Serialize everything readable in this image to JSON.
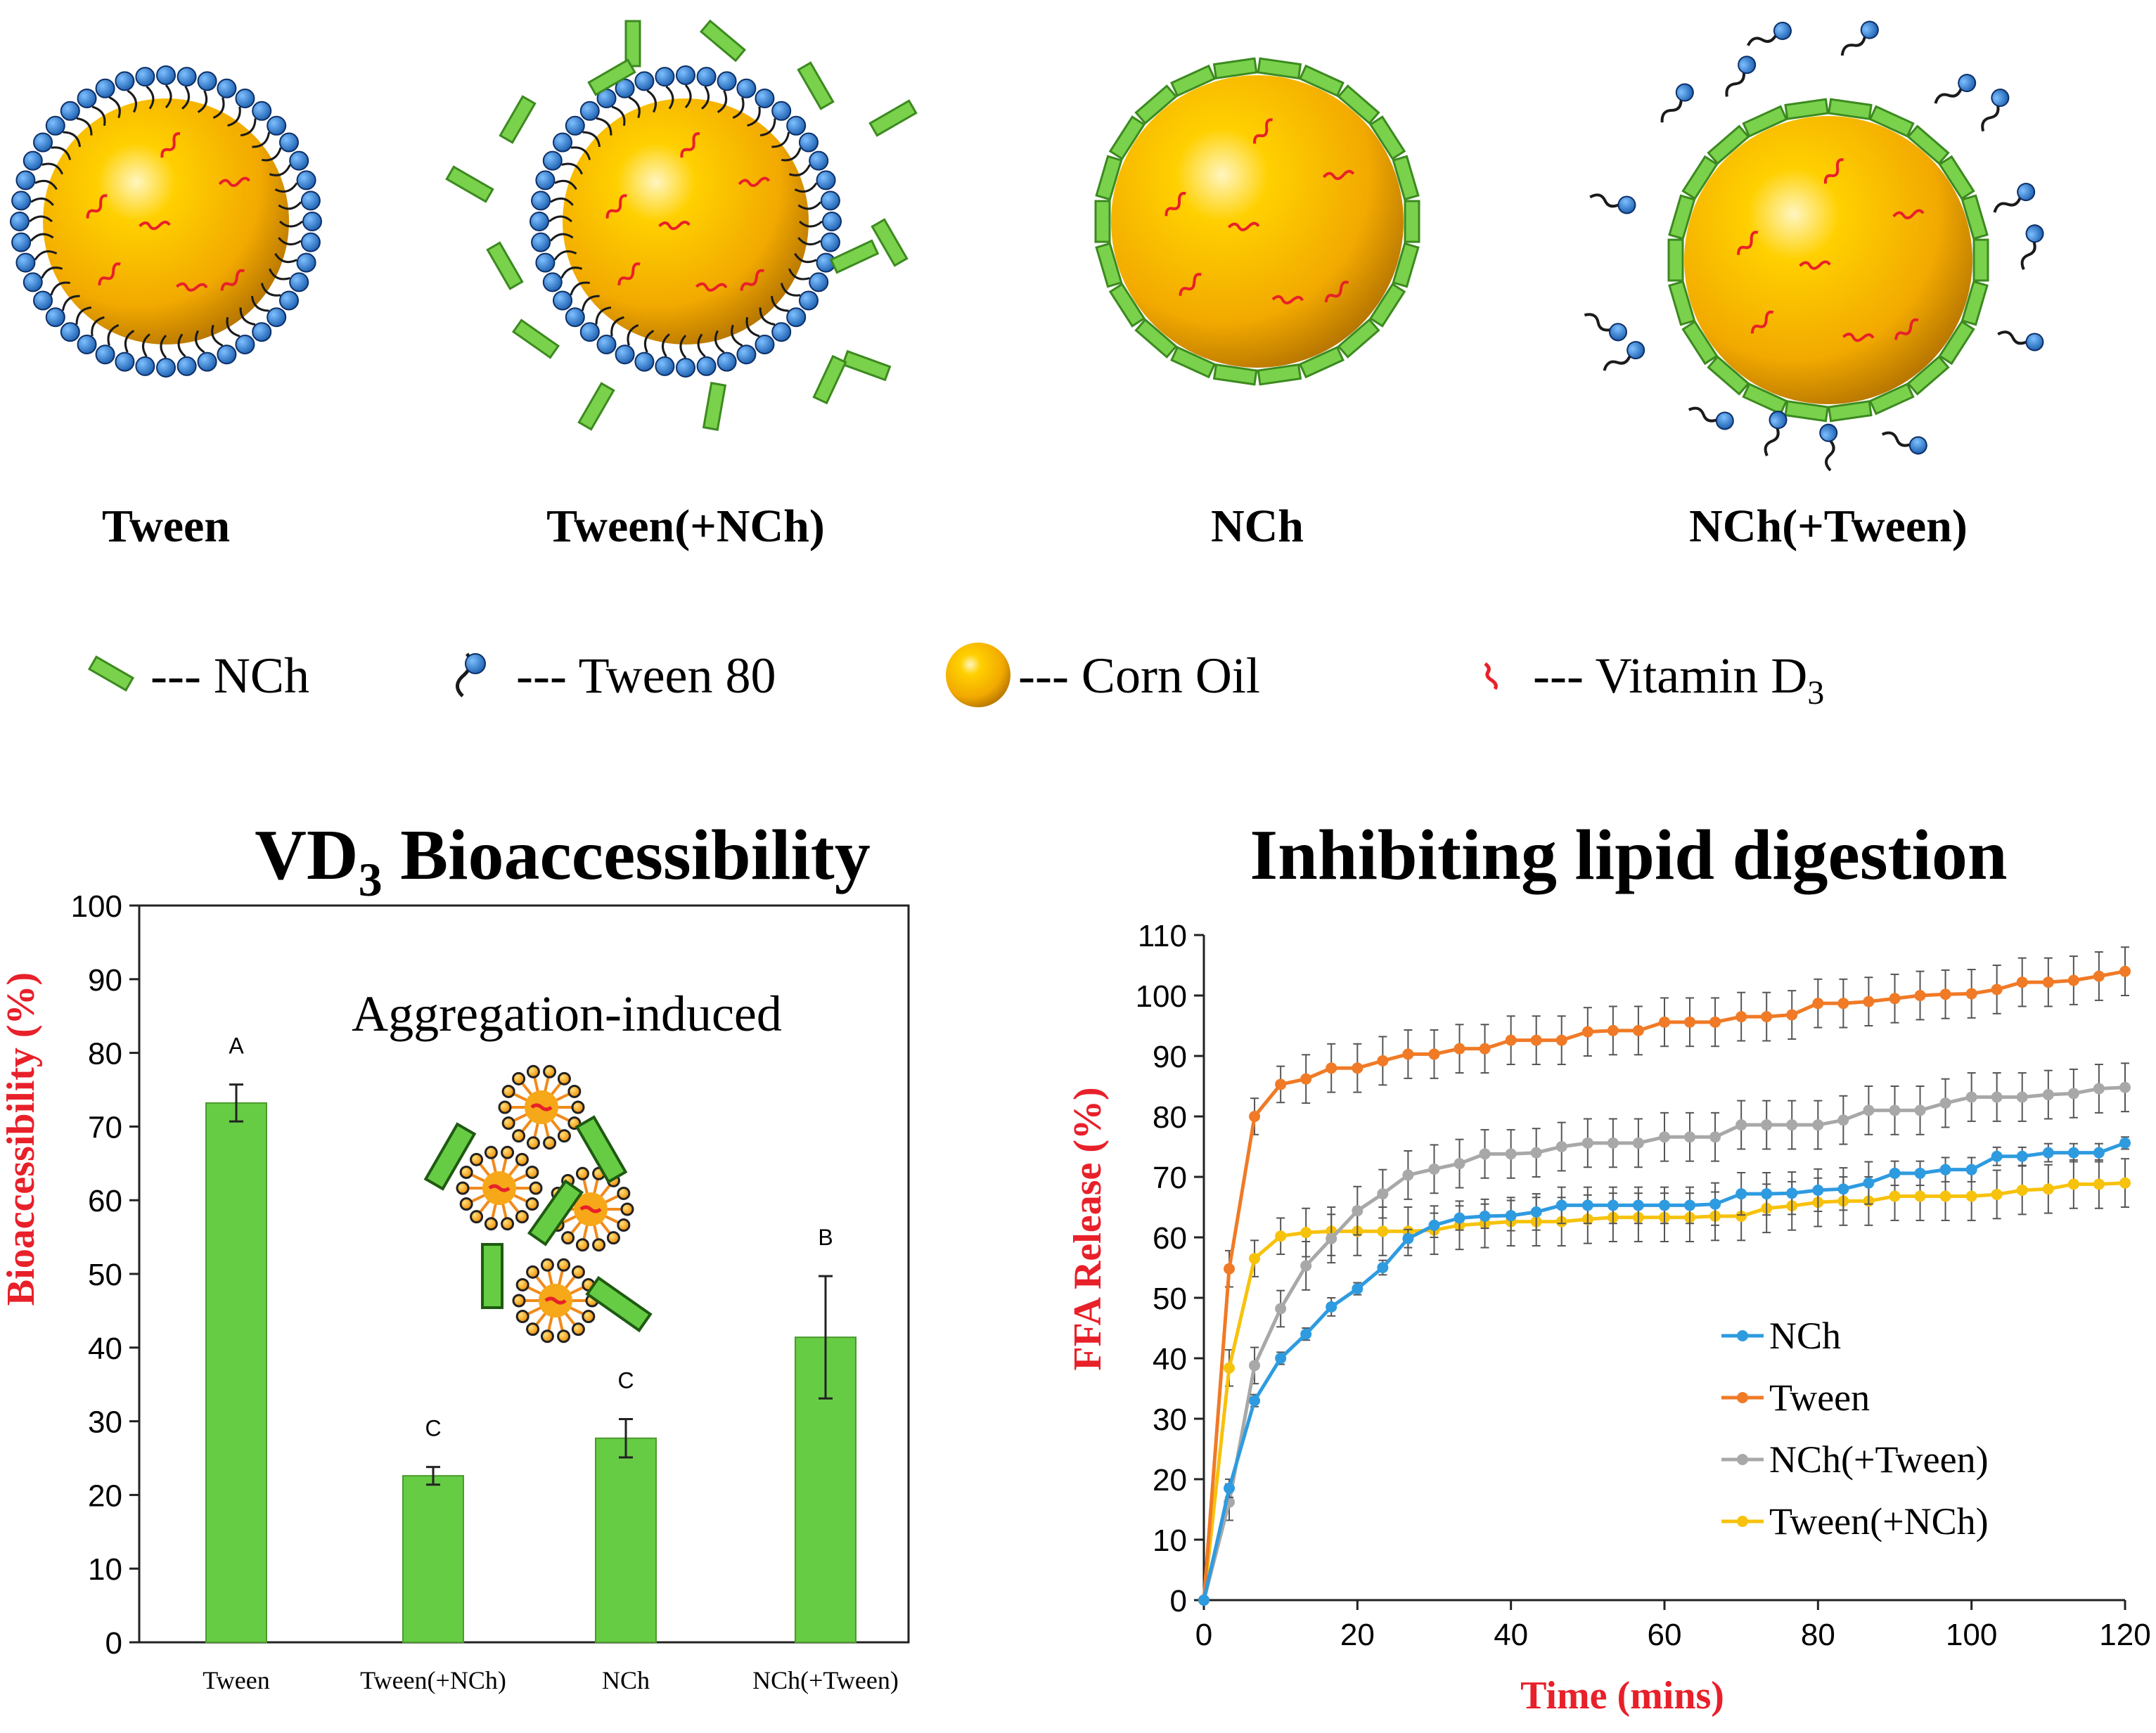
{
  "figure": {
    "schematics": [
      {
        "label": "Tween"
      },
      {
        "label": "Tween(+NCh)"
      },
      {
        "label": "NCh"
      },
      {
        "label": "NCh(+Tween)"
      }
    ],
    "legend": [
      {
        "label": "--- NCh",
        "icon": "nch-rod-icon"
      },
      {
        "label": "--- Tween 80",
        "icon": "tween-molecule-icon"
      },
      {
        "label": "--- Corn Oil",
        "icon": "corn-oil-droplet-icon"
      },
      {
        "label": "--- Vitamin D",
        "sub": "3",
        "icon": "vitamin-d3-icon"
      }
    ],
    "inset_label": "Aggregation-induced"
  },
  "colors": {
    "bar_fill": "#66cc44",
    "bar_edge": "#4a9a2c",
    "axis_label_red": "#e8202a",
    "nch": "#2e9be0",
    "tween": "#f07a26",
    "nch_tween": "#a8a8a8",
    "tween_nch": "#f7c20c",
    "oil_core": "#f5b800",
    "rod_green": "#7ad14c",
    "head_blue": "#2f7fd6"
  },
  "chart_data": [
    {
      "type": "bar",
      "title": "VD",
      "title_sub": "3",
      "title_rest": " Bioaccessibility",
      "xlabel": "",
      "ylabel": "Bioaccessibility (%)",
      "ylim": [
        0,
        100
      ],
      "yticks": [
        "0",
        "10",
        "20",
        "30",
        "40",
        "50",
        "60",
        "70",
        "80",
        "90",
        "100"
      ],
      "categories": [
        "Tween",
        "Tween(+NCh)",
        "NCh",
        "NCh(+Tween)"
      ],
      "values": [
        73.2,
        22.6,
        27.7,
        41.4
      ],
      "errors": [
        2.5,
        1.2,
        2.6,
        8.3
      ],
      "significance": [
        "A",
        "C",
        "C",
        "B"
      ]
    },
    {
      "type": "line",
      "title": "Inhibiting lipid digestion",
      "xlabel": "Time (mins)",
      "ylabel": "FFA Release (%)",
      "xlim": [
        0,
        120
      ],
      "ylim": [
        0,
        110
      ],
      "xticks": [
        "0",
        "20",
        "40",
        "60",
        "80",
        "100",
        "120"
      ],
      "yticks": [
        "0",
        "10",
        "20",
        "30",
        "40",
        "50",
        "60",
        "70",
        "80",
        "90",
        "100",
        "110"
      ],
      "x": [
        0,
        3.3,
        6.6,
        10,
        13.3,
        16.6,
        20,
        23.3,
        26.6,
        30,
        33.3,
        36.6,
        40,
        43.3,
        46.6,
        50,
        53.3,
        56.6,
        60,
        63.3,
        66.6,
        70,
        73.3,
        76.6,
        80,
        83.3,
        86.6,
        90,
        93.3,
        96.6,
        100,
        103.3,
        106.6,
        110,
        113.3,
        116.6,
        120
      ],
      "series": [
        {
          "name": "NCh",
          "color": "#2e9be0",
          "values": [
            0,
            18.5,
            33,
            40,
            44,
            48.5,
            51.5,
            55,
            59.8,
            62,
            63.2,
            63.5,
            63.6,
            64.2,
            65.3,
            65.3,
            65.3,
            65.3,
            65.3,
            65.3,
            65.5,
            67.2,
            67.2,
            67.3,
            67.8,
            68,
            69,
            70.6,
            70.6,
            71.2,
            71.2,
            73.4,
            73.4,
            74,
            74,
            74,
            75.6
          ],
          "errors": [
            0,
            1.5,
            1,
            1,
            1,
            1.5,
            1,
            1.2,
            1.5,
            2,
            2,
            2,
            2.5,
            3,
            3,
            3,
            3,
            3,
            3,
            3,
            3.5,
            3.5,
            3.5,
            3.5,
            3.5,
            3.5,
            3.5,
            2,
            2,
            2,
            2,
            1.5,
            1.5,
            1.5,
            1.5,
            1.5,
            1
          ]
        },
        {
          "name": "Tween",
          "color": "#f07a26",
          "values": [
            0,
            54.8,
            80,
            85.3,
            86.2,
            88,
            88,
            89.2,
            90.3,
            90.3,
            91.2,
            91.2,
            92.6,
            92.6,
            92.6,
            94,
            94.2,
            94.2,
            95.6,
            95.6,
            95.6,
            96.5,
            96.5,
            96.8,
            98.7,
            98.7,
            99,
            99.5,
            100,
            100.2,
            100.3,
            101,
            102.2,
            102.2,
            102.5,
            103.2,
            104
          ]
        },
        {
          "name": "NCh(+Tween)",
          "color": "#a8a8a8",
          "values": [
            0,
            16.2,
            38.8,
            48.2,
            55.3,
            59.8,
            64.4,
            67.2,
            70.3,
            71.3,
            72.2,
            73.8,
            73.8,
            74,
            75,
            75.6,
            75.6,
            75.6,
            76.6,
            76.6,
            76.6,
            78.6,
            78.6,
            78.6,
            78.6,
            79.4,
            81,
            81,
            81,
            82.2,
            83.2,
            83.2,
            83.2,
            83.6,
            83.8,
            84.6,
            84.8
          ]
        },
        {
          "name": "Tween(+NCh)",
          "color": "#f7c20c",
          "values": [
            0,
            38.4,
            56.5,
            60.2,
            60.8,
            61,
            61,
            61,
            61,
            61.2,
            62,
            62.3,
            62.6,
            62.6,
            62.6,
            63,
            63.3,
            63.3,
            63.3,
            63.3,
            63.5,
            63.5,
            64.8,
            65.2,
            65.8,
            66,
            66,
            66.8,
            66.8,
            66.8,
            66.8,
            67.1,
            67.8,
            68,
            68.8,
            68.8,
            69
          ]
        }
      ],
      "legend_position": "bottom-right"
    }
  ]
}
